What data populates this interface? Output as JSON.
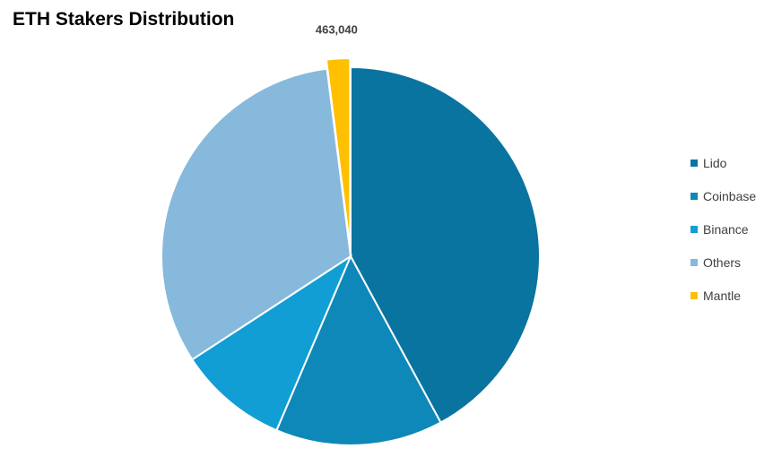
{
  "chart_data": {
    "type": "pie",
    "title": "ETH Stakers Distribution",
    "categories": [
      "Lido",
      "Coinbase",
      "Binance",
      "Others",
      "Mantle"
    ],
    "values": [
      0.421,
      0.143,
      0.094,
      0.322,
      0.02
    ],
    "colors": [
      "#0A74A0",
      "#0E88B8",
      "#119ED4",
      "#86B9DC",
      "#FFC000"
    ],
    "data_labels": [
      "",
      "",
      "",
      "",
      "463,040"
    ],
    "exploded": [
      false,
      false,
      false,
      false,
      true
    ],
    "start_angle_deg": 0,
    "direction": "clockwise",
    "legend_position": "right"
  }
}
